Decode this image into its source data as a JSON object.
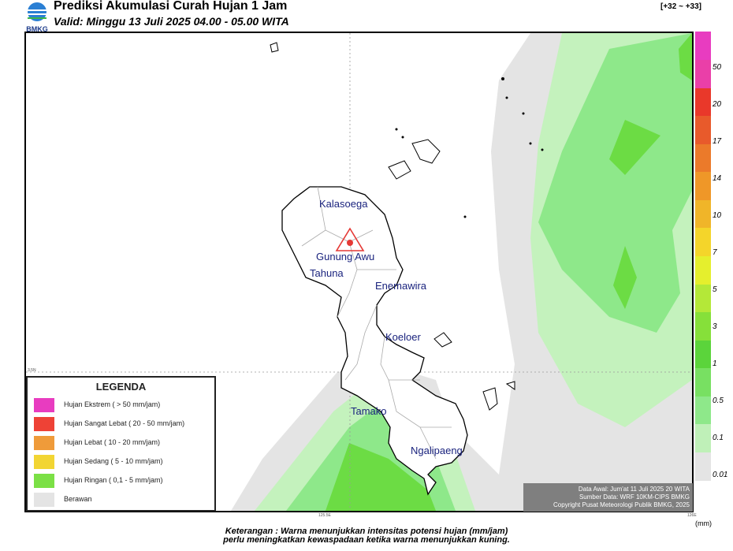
{
  "header": {
    "title": "Prediksi Akumulasi Curah Hujan 1 Jam",
    "valid": "Valid: Minggu 13 Juli 2025 04.00 - 05.00 WITA",
    "logo_text": "BMKG",
    "range": "[+32 ~ +33]"
  },
  "map": {
    "places": [
      {
        "name": "Kalasoega"
      },
      {
        "name": "Gunung Awu"
      },
      {
        "name": "Tahuna"
      },
      {
        "name": "Enemawira"
      },
      {
        "name": "Koeloer"
      },
      {
        "name": "Tamako"
      },
      {
        "name": "Ngalipaeng"
      }
    ],
    "lat_tick": "3.5N",
    "lon_ticks": [
      "125.5E",
      "126E"
    ],
    "volcano_icon": "volcano-triangle-icon"
  },
  "legend": {
    "title": "LEGENDA",
    "items": [
      {
        "label": "Hujan Ekstrem ( > 50 mm/jam)",
        "color": "#e83cc0"
      },
      {
        "label": "Hujan Sangat Lebat ( 20 - 50 mm/jam)",
        "color": "#ee4236"
      },
      {
        "label": "Hujan Lebat ( 10 - 20 mm/jam)",
        "color": "#ef9b3a"
      },
      {
        "label": "Hujan Sedang ( 5 - 10 mm/jam)",
        "color": "#f2d533"
      },
      {
        "label": "Hujan Ringan ( 0,1 - 5 mm/jam)",
        "color": "#7be046"
      },
      {
        "label": "Berawan",
        "color": "#e4e4e4"
      }
    ]
  },
  "info": {
    "line1": "Data Awal: Jum'at 11 Juli 2025 20 WITA",
    "line2": "Sumber Data: WRF 10KM-CIPS BMKG",
    "line3": "Copyright Pusat Meteorologi Publik BMKG, 2025"
  },
  "scale": {
    "colors": [
      "#e4e4e4",
      "#bff0b8",
      "#8ee88a",
      "#78e062",
      "#5bd43b",
      "#86e03a",
      "#b4e838",
      "#e5ef2d",
      "#f4d52a",
      "#f0b529",
      "#ef9728",
      "#eb7a2a",
      "#e85a2b",
      "#e9382a",
      "#ea3fa8",
      "#e83cc0"
    ],
    "labels": [
      "0.01",
      "0.1",
      "0.5",
      "1",
      "3",
      "5",
      "7",
      "10",
      "14",
      "17",
      "20",
      "50"
    ],
    "unit": "(mm)"
  },
  "notes": {
    "line1": "Keterangan : Warna menunjukkan intensitas potensi hujan (mm/jam)",
    "line2": "perlu meningkatkan kewaspadaan ketika warna menunjukkan kuning."
  }
}
